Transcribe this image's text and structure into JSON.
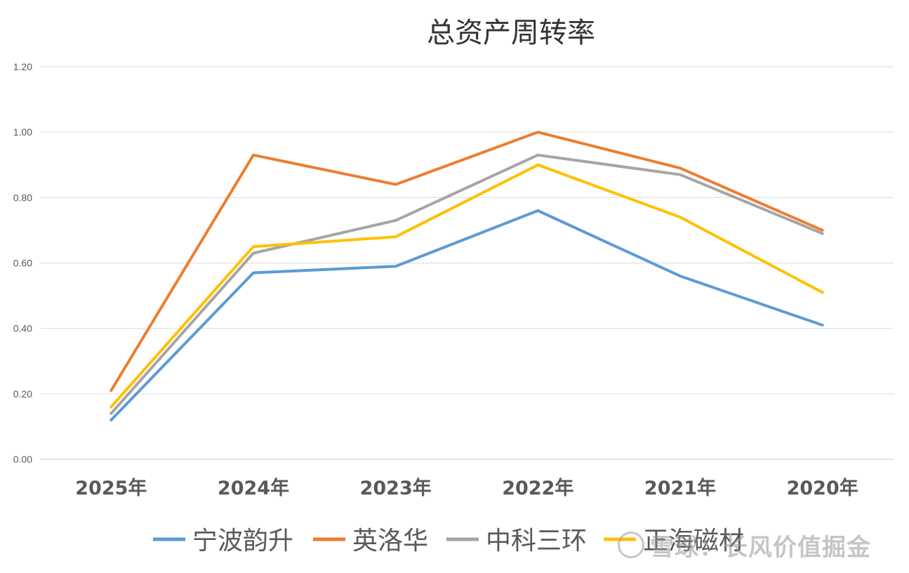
{
  "chart_data": {
    "type": "line",
    "title": "总资产周转率",
    "categories": [
      "2025年",
      "2024年",
      "2023年",
      "2022年",
      "2021年",
      "2020年"
    ],
    "ylim": [
      0,
      1.2
    ],
    "yticks": [
      "0.00",
      "0.20",
      "0.40",
      "0.60",
      "0.80",
      "1.00",
      "1.20"
    ],
    "grid": true,
    "legend_position": "bottom",
    "series": [
      {
        "name": "宁波韵升",
        "color": "#5B9BD5",
        "values": [
          0.12,
          0.57,
          0.59,
          0.76,
          0.56,
          0.41
        ]
      },
      {
        "name": "英洛华",
        "color": "#ED7D31",
        "values": [
          0.21,
          0.93,
          0.84,
          1.0,
          0.89,
          0.7
        ]
      },
      {
        "name": "中科三环",
        "color": "#A5A5A5",
        "values": [
          0.14,
          0.63,
          0.73,
          0.93,
          0.87,
          0.69
        ]
      },
      {
        "name": "正海磁材",
        "color": "#FFC000",
        "values": [
          0.16,
          0.65,
          0.68,
          0.9,
          0.74,
          0.51
        ]
      }
    ]
  },
  "watermark": {
    "text": "雪球：长风价值掘金"
  }
}
